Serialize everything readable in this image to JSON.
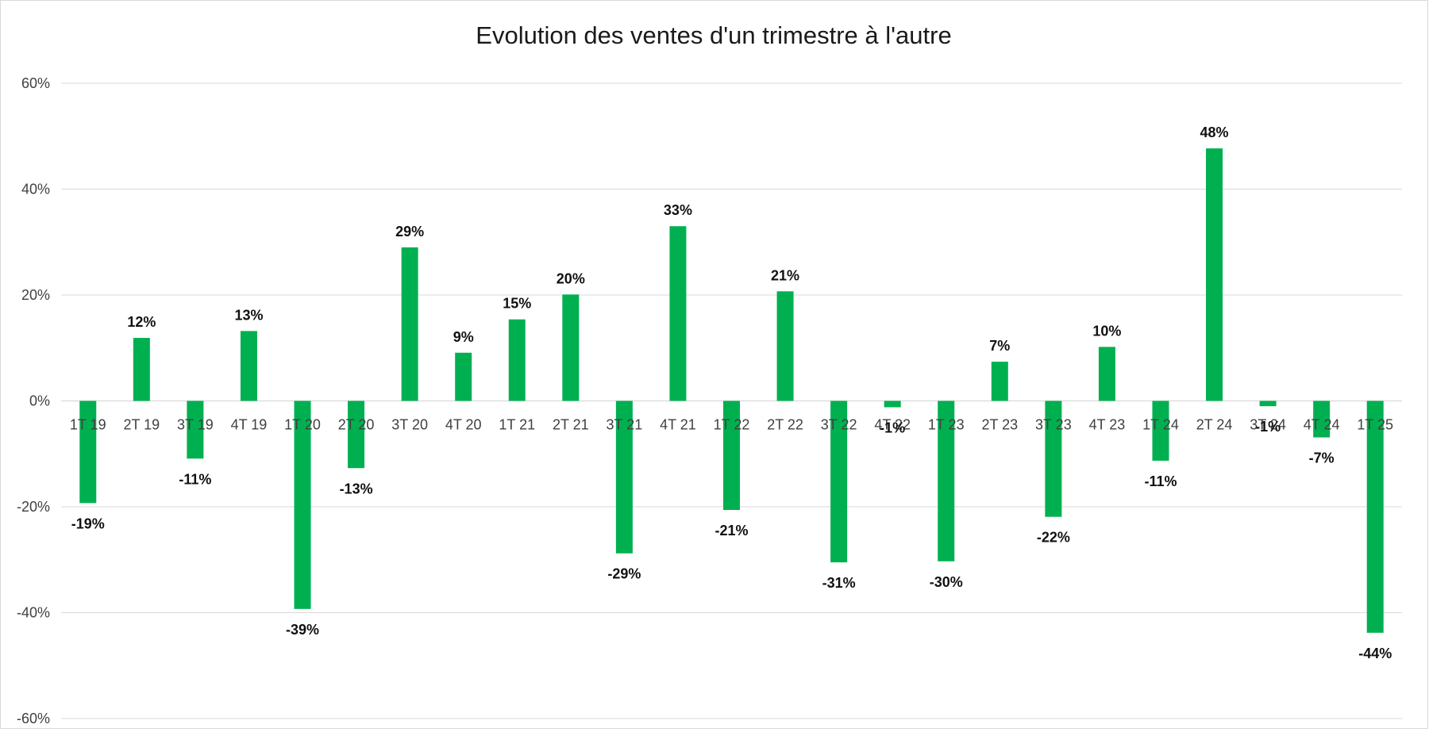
{
  "chart_data": {
    "type": "bar",
    "title": "Evolution des ventes d'un trimestre à l'autre",
    "xlabel": "",
    "ylabel": "",
    "ylim": [
      -60,
      60
    ],
    "y_ticks": [
      60,
      40,
      20,
      0,
      -20,
      -40,
      -60
    ],
    "y_tick_labels": [
      "60%",
      "40%",
      "20%",
      "0%",
      "-20%",
      "-40%",
      "-60%"
    ],
    "grid": true,
    "legend": "none",
    "bar_color": "#00b050",
    "categories": [
      "1T 19",
      "2T 19",
      "3T 19",
      "4T 19",
      "1T 20",
      "2T 20",
      "3T 20",
      "4T 20",
      "1T 21",
      "2T 21",
      "3T 21",
      "4T 21",
      "1T 22",
      "2T 22",
      "3T 22",
      "4T 22",
      "1T 23",
      "2T 23",
      "3T 23",
      "4T 23",
      "1T 24",
      "2T 24",
      "3T 24",
      "4T 24",
      "1T 25"
    ],
    "values": [
      -19.3,
      11.9,
      -10.9,
      13.2,
      -39.3,
      -12.7,
      29.0,
      9.1,
      15.4,
      20.1,
      -28.8,
      33.0,
      -20.6,
      20.7,
      -30.5,
      -1.2,
      -30.3,
      7.4,
      -21.9,
      10.2,
      -11.3,
      47.7,
      -1.0,
      -6.9,
      -43.8
    ],
    "value_labels": [
      "-19%",
      "12%",
      "-11%",
      "13%",
      "-39%",
      "-13%",
      "29%",
      "9%",
      "15%",
      "20%",
      "-29%",
      "33%",
      "-21%",
      "21%",
      "-31%",
      "-1%",
      "-30%",
      "7%",
      "-22%",
      "10%",
      "-11%",
      "48%",
      "-1%",
      "-7%",
      "-44%"
    ]
  }
}
